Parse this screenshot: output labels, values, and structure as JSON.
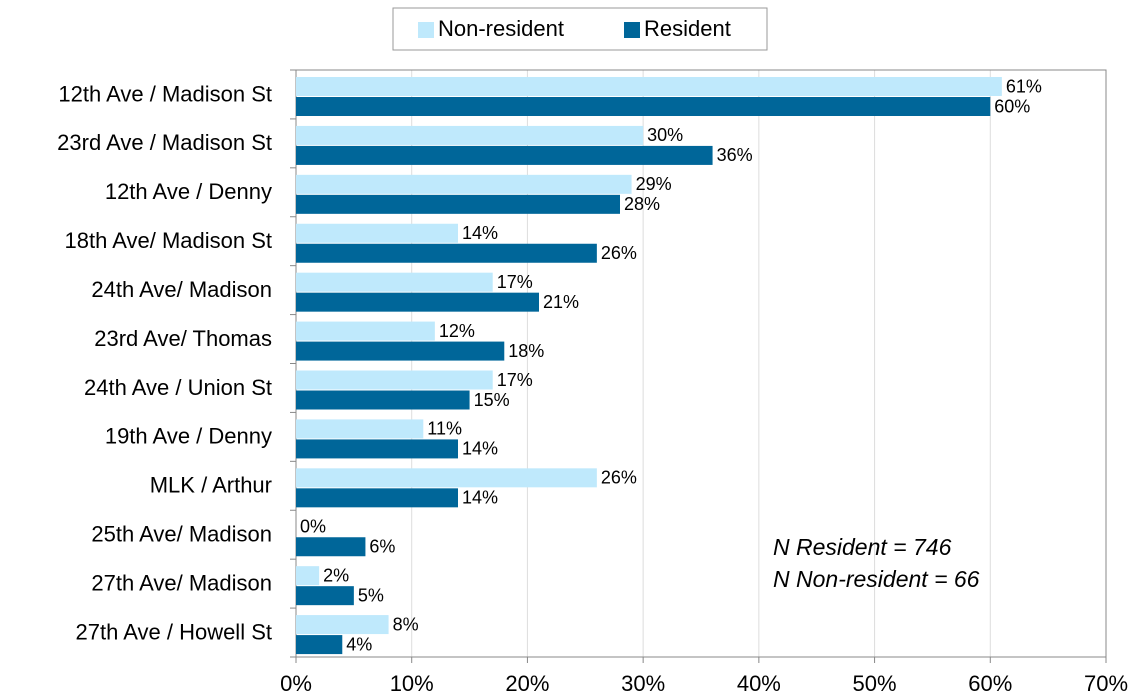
{
  "chart_data": {
    "type": "hbar",
    "categories": [
      "12th Ave / Madison St",
      "23rd Ave / Madison St",
      "12th Ave / Denny",
      "18th Ave/ Madison St",
      "24th Ave/ Madison",
      "23rd Ave/ Thomas",
      "24th Ave / Union St",
      "19th Ave / Denny",
      "MLK / Arthur",
      "25th Ave/ Madison",
      "27th Ave/ Madison",
      "27th Ave / Howell St"
    ],
    "series": [
      {
        "name": "Non-resident",
        "color": "#bfe9fc",
        "values": [
          61,
          30,
          29,
          14,
          17,
          12,
          17,
          11,
          26,
          0,
          2,
          8
        ],
        "value_labels": [
          "61%",
          "30%",
          "29%",
          "14%",
          "17%",
          "12%",
          "17%",
          "11%",
          "26%",
          "0%",
          "2%",
          "8%"
        ]
      },
      {
        "name": "Resident",
        "color": "#006699",
        "values": [
          60,
          36,
          28,
          26,
          21,
          18,
          15,
          14,
          14,
          6,
          5,
          4
        ],
        "value_labels": [
          "60%",
          "36%",
          "28%",
          "26%",
          "21%",
          "18%",
          "15%",
          "14%",
          "14%",
          "6%",
          "5%",
          "4%"
        ]
      }
    ],
    "xlim": [
      0,
      70
    ],
    "xticks": [
      {
        "value": 0,
        "label": "0%"
      },
      {
        "value": 10,
        "label": "10%"
      },
      {
        "value": 20,
        "label": "20%"
      },
      {
        "value": 30,
        "label": "30%"
      },
      {
        "value": 40,
        "label": "40%"
      },
      {
        "value": 50,
        "label": "50%"
      },
      {
        "value": 60,
        "label": "60%"
      },
      {
        "value": 70,
        "label": "70%"
      }
    ],
    "grid": true,
    "legend": "top",
    "annotations": [
      "N Resident = 746",
      "N Non-resident = 66"
    ]
  }
}
